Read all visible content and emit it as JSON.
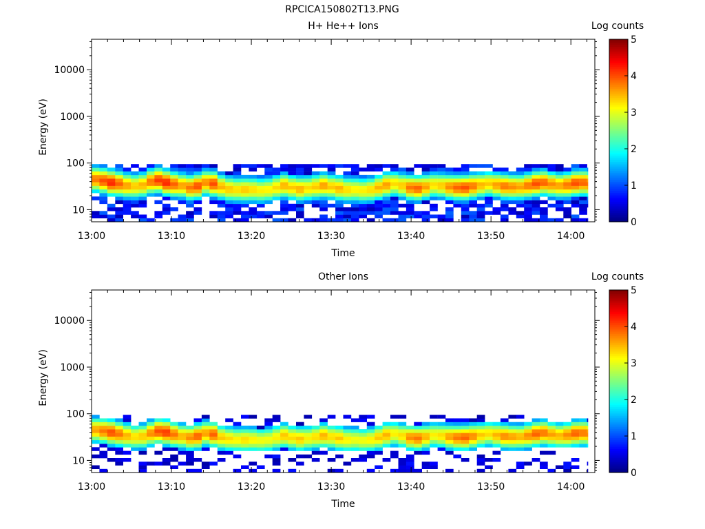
{
  "figure_title": "RPCICA150802T13.PNG",
  "colormap": [
    "#00007f",
    "#0000ff",
    "#007fff",
    "#00ffff",
    "#7fff7f",
    "#ffff00",
    "#ff7f00",
    "#ff0000",
    "#7f0000"
  ],
  "chart_data": [
    {
      "type": "heatmap",
      "title": "H+ He++ Ions",
      "xlabel": "Time",
      "ylabel": "Energy (eV)",
      "x_range": [
        "13:00",
        "14:03"
      ],
      "xticks": [
        "13:00",
        "13:10",
        "13:20",
        "13:30",
        "13:40",
        "13:50",
        "14:00"
      ],
      "y_scale": "log",
      "ylim": [
        5.5,
        45000
      ],
      "yticks": [
        "10",
        "100",
        "1000",
        "10000"
      ],
      "colorbar": {
        "label": "Log counts",
        "range": [
          0,
          5
        ],
        "ticks": [
          "0",
          "1",
          "2",
          "3",
          "4",
          "5"
        ]
      },
      "energy_band_eV": [
        5.5,
        95
      ],
      "peak_energy_eV": [
        45,
        42,
        38,
        36,
        33,
        32,
        34,
        40,
        43,
        38,
        35,
        33,
        30,
        32,
        38,
        36,
        31,
        28,
        27,
        27,
        27,
        26,
        27,
        30,
        33,
        30,
        28,
        29,
        31,
        33,
        31,
        29,
        27,
        27,
        26,
        27,
        30,
        34,
        36,
        33,
        30,
        29,
        31,
        34,
        33,
        31,
        30,
        30,
        32,
        34,
        36,
        34,
        32,
        31,
        31,
        33,
        36,
        38,
        35,
        33,
        34,
        37,
        38,
        36
      ],
      "peak_log_counts": [
        3.8,
        4.0,
        4.2,
        3.9,
        3.6,
        3.4,
        3.5,
        3.8,
        4.1,
        4.2,
        3.9,
        3.6,
        3.8,
        4.0,
        3.7,
        4.0,
        3.5,
        3.4,
        3.3,
        3.4,
        3.3,
        3.2,
        3.2,
        3.3,
        3.5,
        3.4,
        3.5,
        3.3,
        3.4,
        3.6,
        3.4,
        3.5,
        3.3,
        3.2,
        3.2,
        3.3,
        3.5,
        3.6,
        3.3,
        3.4,
        3.8,
        3.9,
        3.6,
        3.3,
        3.4,
        3.7,
        3.9,
        4.0,
        3.8,
        3.5,
        3.4,
        3.6,
        3.8,
        3.7,
        3.6,
        3.8,
        4.0,
        3.9,
        3.7,
        3.6,
        3.8,
        4.0,
        3.9,
        3.8
      ]
    },
    {
      "type": "heatmap",
      "title": "Other Ions",
      "xlabel": "Time",
      "ylabel": "Energy (eV)",
      "x_range": [
        "13:00",
        "14:03"
      ],
      "xticks": [
        "13:00",
        "13:10",
        "13:20",
        "13:30",
        "13:40",
        "13:50",
        "14:00"
      ],
      "y_scale": "log",
      "ylim": [
        5.5,
        45000
      ],
      "yticks": [
        "10",
        "100",
        "1000",
        "10000"
      ],
      "colorbar": {
        "label": "Log counts",
        "range": [
          0,
          5
        ],
        "ticks": [
          "0",
          "1",
          "2",
          "3",
          "4",
          "5"
        ]
      },
      "energy_band_eV": [
        5.5,
        95
      ],
      "peak_energy_eV": [
        45,
        43,
        40,
        37,
        34,
        32,
        33,
        38,
        42,
        40,
        36,
        33,
        31,
        33,
        38,
        36,
        31,
        29,
        28,
        28,
        28,
        27,
        28,
        31,
        34,
        31,
        29,
        30,
        32,
        34,
        32,
        30,
        28,
        28,
        27,
        28,
        31,
        35,
        37,
        34,
        31,
        30,
        32,
        35,
        34,
        32,
        31,
        31,
        33,
        35,
        37,
        35,
        33,
        32,
        32,
        34,
        37,
        39,
        36,
        34,
        35,
        38,
        39,
        37
      ],
      "peak_log_counts": [
        3.6,
        3.8,
        4.0,
        3.8,
        3.5,
        3.3,
        3.4,
        3.7,
        4.0,
        4.1,
        3.8,
        3.5,
        3.7,
        3.9,
        3.6,
        3.9,
        3.4,
        3.3,
        3.2,
        3.3,
        3.2,
        3.1,
        3.1,
        3.2,
        3.4,
        3.3,
        3.4,
        3.2,
        3.3,
        3.5,
        3.3,
        3.4,
        3.2,
        3.1,
        3.1,
        3.2,
        3.4,
        3.5,
        3.2,
        3.3,
        3.7,
        3.8,
        3.5,
        3.2,
        3.3,
        3.6,
        3.8,
        3.9,
        3.7,
        3.4,
        3.3,
        3.5,
        3.7,
        3.6,
        3.5,
        3.7,
        3.9,
        3.8,
        3.6,
        3.5,
        3.7,
        3.9,
        3.8,
        3.7
      ]
    }
  ]
}
